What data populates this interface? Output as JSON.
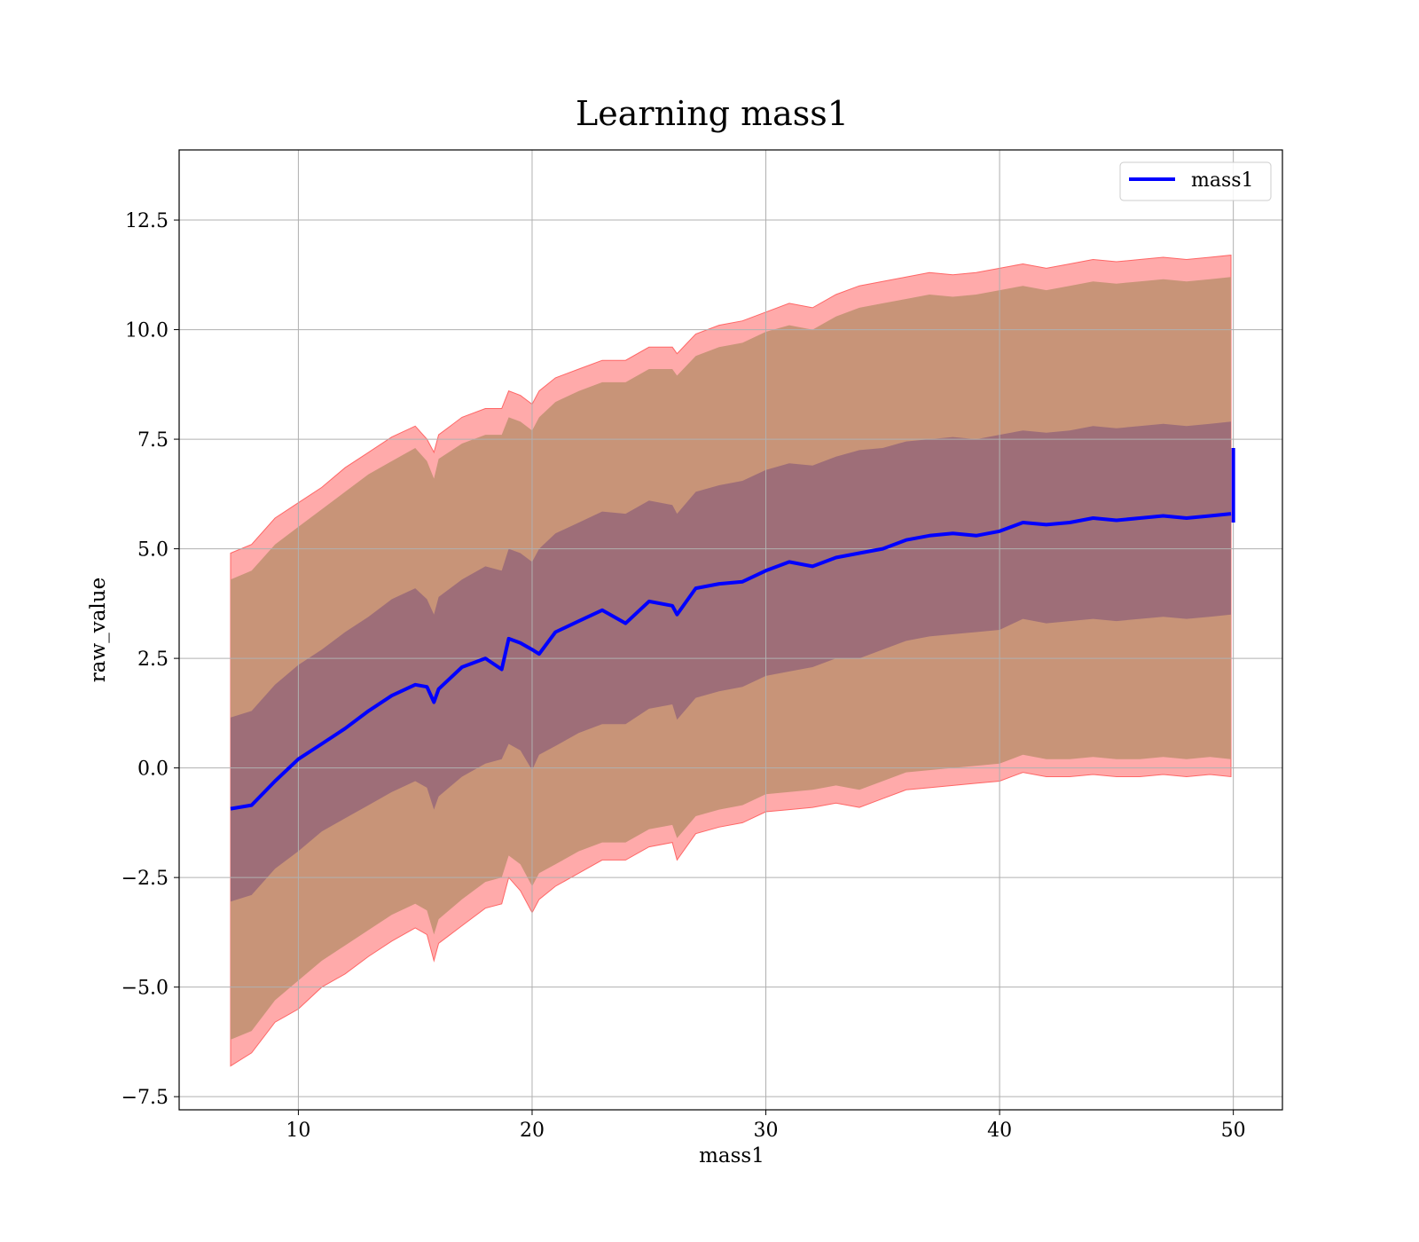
{
  "chart_data": {
    "type": "area",
    "title": "Learning mass1",
    "xlabel": "mass1",
    "ylabel": "raw_value",
    "xlim": [
      4.9,
      52.1
    ],
    "ylim": [
      -7.8,
      14.1
    ],
    "xticks": [
      10,
      20,
      30,
      40,
      50
    ],
    "xtick_labels": [
      "10",
      "20",
      "30",
      "40",
      "50"
    ],
    "yticks": [
      -7.5,
      -5.0,
      -2.5,
      0.0,
      2.5,
      5.0,
      7.5,
      10.0,
      12.5
    ],
    "ytick_labels": [
      "−7.5",
      "−5.0",
      "−2.5",
      "0.0",
      "2.5",
      "5.0",
      "7.5",
      "10.0",
      "12.5"
    ],
    "grid": true,
    "legend": {
      "position": "top-right",
      "entries": [
        "mass1"
      ]
    },
    "colors": {
      "mean_line": "#0000ff",
      "band_1sigma": "#9e6e78",
      "band_2sigma": "#c89478",
      "band_3sigma": "#ffaaaa",
      "band_3sigma_edge": "#ff6666",
      "grid": "#b0b0b0"
    },
    "x": [
      7.1,
      8,
      9,
      10,
      11,
      12,
      13,
      14,
      15,
      15.5,
      15.8,
      16,
      17,
      18,
      18.7,
      19,
      19.5,
      20,
      20.3,
      21,
      22,
      23,
      24,
      25,
      26,
      26.2,
      27,
      28,
      29,
      30,
      31,
      32,
      33,
      34,
      35,
      36,
      37,
      38,
      39,
      40,
      41,
      42,
      43,
      44,
      45,
      46,
      47,
      48,
      49,
      49.9
    ],
    "series": [
      {
        "name": "mass1",
        "values": [
          -0.93,
          -0.85,
          -0.3,
          0.2,
          0.55,
          0.9,
          1.3,
          1.65,
          1.9,
          1.85,
          1.5,
          1.8,
          2.3,
          2.5,
          2.25,
          2.95,
          2.85,
          2.7,
          2.6,
          3.1,
          3.35,
          3.6,
          3.3,
          3.8,
          3.7,
          3.5,
          4.1,
          4.2,
          4.25,
          4.5,
          4.7,
          4.6,
          4.8,
          4.9,
          5.0,
          5.2,
          5.3,
          5.35,
          5.3,
          5.4,
          5.6,
          5.55,
          5.6,
          5.7,
          5.65,
          5.7,
          5.75,
          5.7,
          5.75,
          5.8
        ]
      }
    ],
    "end_spike": {
      "x": 50.0,
      "low": 5.6,
      "high": 7.3
    },
    "bands": [
      {
        "level": "3sigma",
        "lower": [
          -6.8,
          -6.5,
          -5.8,
          -5.5,
          -5.0,
          -4.7,
          -4.3,
          -3.95,
          -3.65,
          -3.8,
          -4.4,
          -4.0,
          -3.6,
          -3.2,
          -3.1,
          -2.5,
          -2.8,
          -3.3,
          -3.0,
          -2.7,
          -2.4,
          -2.1,
          -2.1,
          -1.8,
          -1.7,
          -2.1,
          -1.5,
          -1.35,
          -1.25,
          -1.0,
          -0.95,
          -0.9,
          -0.8,
          -0.9,
          -0.7,
          -0.5,
          -0.45,
          -0.4,
          -0.35,
          -0.3,
          -0.1,
          -0.2,
          -0.2,
          -0.15,
          -0.2,
          -0.2,
          -0.15,
          -0.2,
          -0.15,
          -0.2
        ],
        "upper": [
          4.9,
          5.1,
          5.7,
          6.05,
          6.4,
          6.85,
          7.2,
          7.55,
          7.8,
          7.5,
          7.2,
          7.6,
          8.0,
          8.2,
          8.2,
          8.6,
          8.5,
          8.3,
          8.6,
          8.9,
          9.1,
          9.3,
          9.3,
          9.6,
          9.6,
          9.45,
          9.9,
          10.1,
          10.2,
          10.4,
          10.6,
          10.5,
          10.8,
          11.0,
          11.1,
          11.2,
          11.3,
          11.25,
          11.3,
          11.4,
          11.5,
          11.4,
          11.5,
          11.6,
          11.55,
          11.6,
          11.65,
          11.6,
          11.65,
          11.7
        ]
      },
      {
        "level": "2sigma",
        "lower": [
          -6.2,
          -6.0,
          -5.3,
          -4.85,
          -4.4,
          -4.05,
          -3.7,
          -3.35,
          -3.1,
          -3.25,
          -3.8,
          -3.45,
          -3.0,
          -2.6,
          -2.5,
          -2.0,
          -2.2,
          -2.7,
          -2.4,
          -2.2,
          -1.9,
          -1.7,
          -1.7,
          -1.4,
          -1.3,
          -1.6,
          -1.1,
          -0.95,
          -0.85,
          -0.6,
          -0.55,
          -0.5,
          -0.4,
          -0.5,
          -0.3,
          -0.1,
          -0.05,
          0.0,
          0.05,
          0.1,
          0.3,
          0.2,
          0.2,
          0.25,
          0.2,
          0.2,
          0.25,
          0.2,
          0.25,
          0.2
        ],
        "upper": [
          4.3,
          4.5,
          5.1,
          5.5,
          5.9,
          6.3,
          6.7,
          7.0,
          7.3,
          7.0,
          6.6,
          7.05,
          7.4,
          7.6,
          7.6,
          8.0,
          7.9,
          7.7,
          8.0,
          8.35,
          8.6,
          8.8,
          8.8,
          9.1,
          9.1,
          8.95,
          9.4,
          9.6,
          9.7,
          9.95,
          10.1,
          10.0,
          10.3,
          10.5,
          10.6,
          10.7,
          10.8,
          10.75,
          10.8,
          10.9,
          11.0,
          10.9,
          11.0,
          11.1,
          11.05,
          11.1,
          11.15,
          11.1,
          11.15,
          11.2
        ]
      },
      {
        "level": "1sigma",
        "lower": [
          -3.05,
          -2.9,
          -2.3,
          -1.9,
          -1.45,
          -1.15,
          -0.85,
          -0.55,
          -0.3,
          -0.45,
          -0.95,
          -0.65,
          -0.2,
          0.1,
          0.2,
          0.55,
          0.4,
          -0.05,
          0.3,
          0.5,
          0.8,
          1.0,
          1.0,
          1.35,
          1.45,
          1.1,
          1.6,
          1.75,
          1.85,
          2.1,
          2.2,
          2.3,
          2.5,
          2.5,
          2.7,
          2.9,
          3.0,
          3.05,
          3.1,
          3.15,
          3.4,
          3.3,
          3.35,
          3.4,
          3.35,
          3.4,
          3.45,
          3.4,
          3.45,
          3.5
        ],
        "upper": [
          1.15,
          1.3,
          1.9,
          2.35,
          2.7,
          3.1,
          3.45,
          3.85,
          4.1,
          3.85,
          3.5,
          3.9,
          4.3,
          4.6,
          4.5,
          5.0,
          4.9,
          4.7,
          5.0,
          5.35,
          5.6,
          5.85,
          5.8,
          6.1,
          6.0,
          5.8,
          6.3,
          6.45,
          6.55,
          6.8,
          6.95,
          6.9,
          7.1,
          7.25,
          7.3,
          7.45,
          7.5,
          7.55,
          7.5,
          7.6,
          7.7,
          7.65,
          7.7,
          7.8,
          7.75,
          7.8,
          7.85,
          7.8,
          7.85,
          7.9
        ]
      }
    ]
  }
}
